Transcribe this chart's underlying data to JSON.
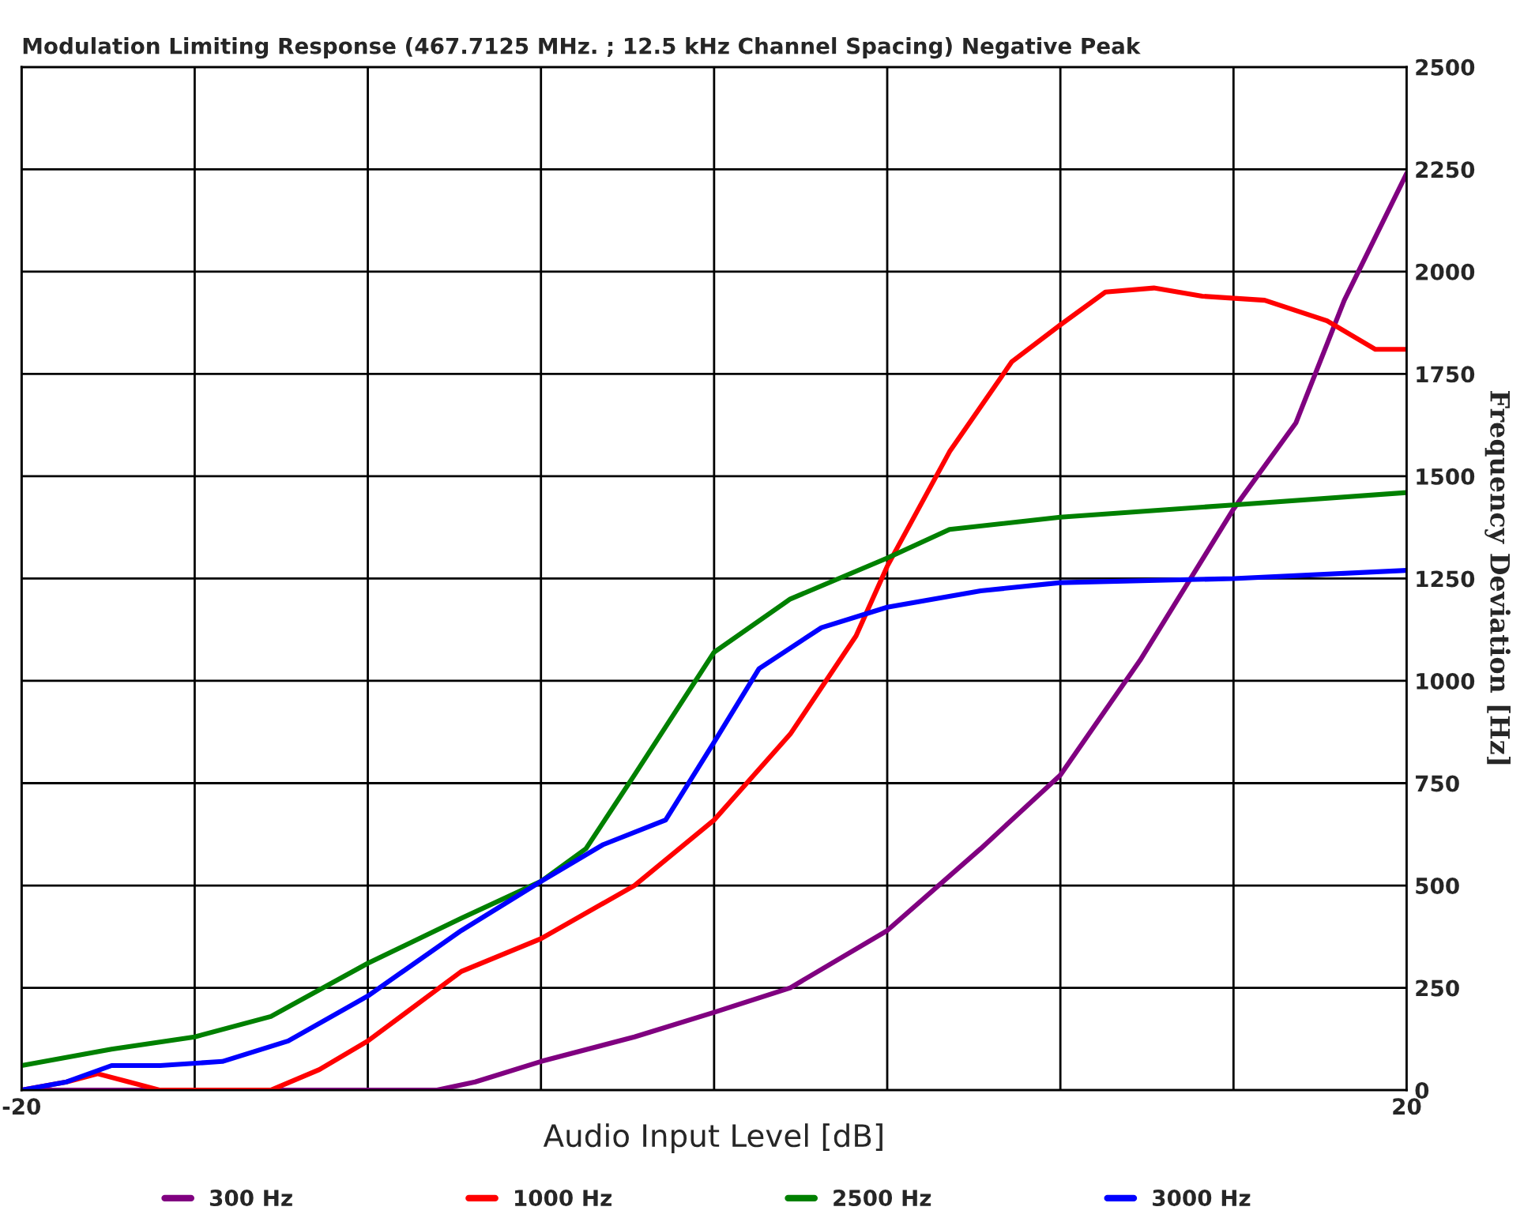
{
  "chart_data": {
    "type": "line",
    "title": "Modulation Limiting Response (467.7125 MHz. ; 12.5 kHz Channel Spacing) Negative Peak",
    "xlabel": "Audio Input Level [dB]",
    "ylabel": "Frequency Deviation [Hz]",
    "xlim": [
      -20,
      20
    ],
    "ylim": [
      0,
      2500
    ],
    "xticks": [
      -20,
      {
        "value": -15,
        "label": null
      },
      {
        "value": -10,
        "label": null
      },
      {
        "value": -5,
        "label": null
      },
      {
        "value": 0,
        "label": null
      },
      {
        "value": 5,
        "label": null
      },
      {
        "value": 10,
        "label": null
      },
      {
        "value": 15,
        "label": null
      },
      20
    ],
    "yticks": [
      0,
      250,
      500,
      750,
      1000,
      1250,
      1500,
      1750,
      2000,
      2250,
      2500
    ],
    "grid": true,
    "legend": "bottom",
    "line_style": "solid",
    "marker": "none",
    "series": [
      {
        "name": "300 Hz",
        "color": "#800080",
        "x": [
          -20,
          -8.0,
          -6.9,
          -5.0,
          -2.3,
          0,
          2.2,
          5.0,
          7.7,
          10.0,
          12.3,
          15.0,
          16.8,
          18.2,
          20
        ],
        "values": [
          0,
          0,
          20,
          70,
          130,
          190,
          250,
          390,
          590,
          770,
          1050,
          1420,
          1630,
          1930,
          2240
        ]
      },
      {
        "name": "1000 Hz",
        "color": "#ff0000",
        "x": [
          -20,
          -18.7,
          -17.8,
          -16.9,
          -16.0,
          -12.8,
          -11.4,
          -10,
          -7.3,
          -5,
          -2.3,
          0,
          2.2,
          4.1,
          5,
          6.8,
          8.6,
          10,
          11.3,
          12.7,
          14.1,
          15.9,
          17.7,
          19.1,
          20
        ],
        "values": [
          0,
          20,
          40,
          20,
          0,
          0,
          50,
          120,
          290,
          370,
          500,
          660,
          870,
          1110,
          1280,
          1560,
          1780,
          1870,
          1950,
          1960,
          1940,
          1930,
          1880,
          1810,
          1810
        ]
      },
      {
        "name": "2500 Hz",
        "color": "#008000",
        "x": [
          -20,
          -17.4,
          -15,
          -12.8,
          -10,
          -7.3,
          -5,
          -3.7,
          -2.3,
          0,
          2.2,
          5,
          6.8,
          10,
          15,
          20
        ],
        "values": [
          60,
          100,
          130,
          180,
          310,
          420,
          510,
          590,
          770,
          1070,
          1200,
          1300,
          1370,
          1400,
          1430,
          1460
        ]
      },
      {
        "name": "3000 Hz",
        "color": "#0000ff",
        "x": [
          -20,
          -18.7,
          -17.4,
          -16,
          -14.2,
          -12.3,
          -10,
          -7.3,
          -5,
          -3.2,
          -1.4,
          0,
          1.3,
          3.1,
          5,
          7.7,
          10,
          15,
          20
        ],
        "values": [
          0,
          20,
          60,
          60,
          70,
          120,
          230,
          390,
          510,
          600,
          660,
          850,
          1030,
          1130,
          1180,
          1220,
          1240,
          1250,
          1270
        ]
      }
    ]
  }
}
